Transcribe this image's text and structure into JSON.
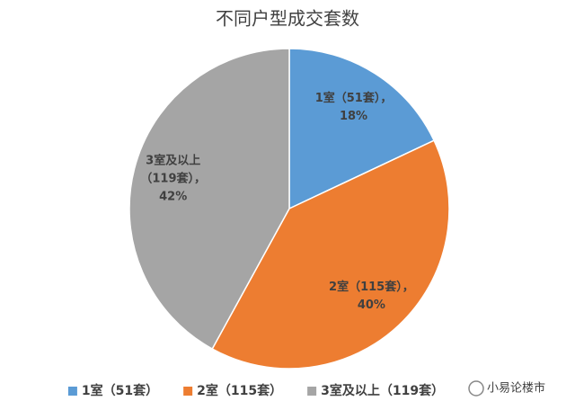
{
  "chart_data": {
    "type": "pie",
    "title": "不同户型成交套数",
    "categories": [
      "1室（51套）",
      "2室（115套）",
      "3室及以上（119套）"
    ],
    "values": [
      18,
      40,
      42
    ],
    "value_labels": [
      "18%",
      "40%",
      "42%"
    ],
    "label_lines": [
      [
        "1室（51套），"
      ],
      [
        "2室（115套），"
      ],
      [
        "3室及以上",
        "（119套），"
      ]
    ],
    "colors": [
      "#5b9bd5",
      "#ed7d31",
      "#a5a5a5"
    ],
    "legend": "bottom",
    "source": "小易论楼市"
  }
}
